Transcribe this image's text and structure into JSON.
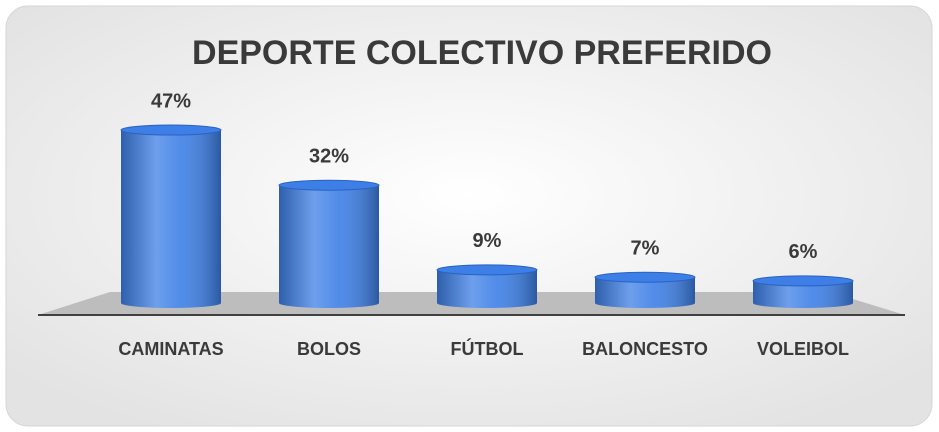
{
  "chart_data": {
    "type": "bar",
    "title": "DEPORTE COLECTIVO PREFERIDO",
    "categories": [
      "CAMINATAS",
      "BOLOS",
      "FÚTBOL",
      "BALONCESTO",
      "VOLEIBOL"
    ],
    "values": [
      47,
      32,
      9,
      7,
      6
    ],
    "value_labels": [
      "47%",
      "32%",
      "9%",
      "7%",
      "6%"
    ],
    "color": "#3d7fe6"
  }
}
